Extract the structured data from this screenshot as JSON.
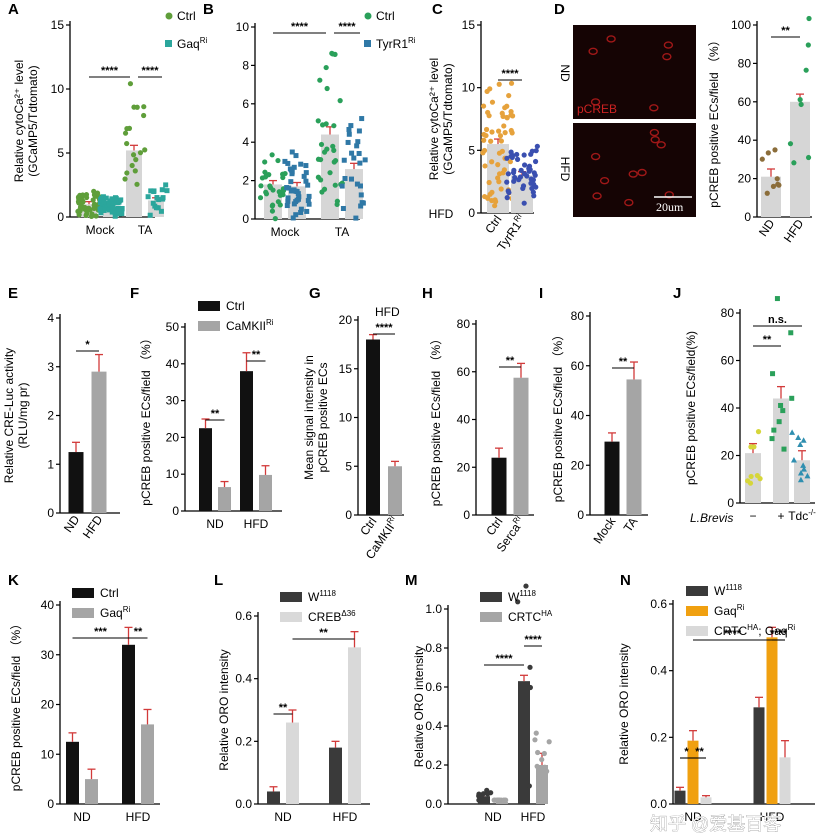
{
  "watermark": "知乎 @爱基百客",
  "chart_data": [
    {
      "id": "A",
      "type": "bar",
      "panel": "A",
      "title": "",
      "categories": [
        "Mock",
        "TA"
      ],
      "series": [
        {
          "name": "Ctrl",
          "legend": "Ctrl",
          "values": [
            1.0,
            5.2
          ],
          "errors": [
            0.2,
            0.4
          ],
          "color": "#5f9e3a",
          "marker": "circle",
          "fill": "#d6d6d6"
        },
        {
          "name": "GaqRi",
          "legend": "Gaq",
          "legend_sup": "Ri",
          "values": [
            0.9,
            1.3
          ],
          "errors": [
            0.15,
            0.2
          ],
          "color": "#2ba69c",
          "marker": "square",
          "fill": "#d6d6d6"
        }
      ],
      "ylabel": [
        "Relative cytoCa²⁺ level",
        "(GCaMP5/Tdtomato)"
      ],
      "ylim": [
        0,
        15
      ],
      "yticks": [
        "0",
        "5",
        "10",
        "15"
      ],
      "significance": [
        "****",
        "****"
      ]
    },
    {
      "id": "B",
      "type": "bar",
      "panel": "B",
      "title": "",
      "categories": [
        "Mock",
        "TA"
      ],
      "series": [
        {
          "name": "Ctrl",
          "legend": "Ctrl",
          "values": [
            1.8,
            4.4
          ],
          "errors": [
            0.2,
            0.4
          ],
          "color": "#2aa05a",
          "marker": "circle",
          "fill": "#d6d6d6"
        },
        {
          "name": "TyrR1Ri",
          "legend": "TyrR1",
          "legend_sup": "Ri",
          "values": [
            1.7,
            2.6
          ],
          "errors": [
            0.2,
            0.3
          ],
          "color": "#2f78a6",
          "marker": "square",
          "fill": "#d6d6d6"
        }
      ],
      "ylabel": [],
      "ylim": [
        0,
        10
      ],
      "yticks": [
        "0",
        "2",
        "4",
        "6",
        "8",
        "10"
      ],
      "significance": [
        "****",
        "****"
      ]
    },
    {
      "id": "C",
      "type": "bar",
      "panel": "C",
      "title": "",
      "row_label": "HFD",
      "categories": [
        "Ctrl",
        "TyrR1"
      ],
      "category_sups": [
        "",
        "Ri"
      ],
      "series": [
        {
          "name": "HFD",
          "values": [
            5.5,
            3.0
          ],
          "errors": [
            0.4,
            0.3
          ],
          "colors": [
            "#e6a23c",
            "#3a4fb0"
          ],
          "fill": "#d6d6d6"
        }
      ],
      "ylabel": [
        "Relative cytoCa²⁺ level",
        "(GCaMP5/Tdtomato)"
      ],
      "ylim": [
        0,
        15
      ],
      "yticks": [
        "0",
        "5",
        "10",
        "15"
      ],
      "significance": [
        "****"
      ]
    },
    {
      "id": "D",
      "type": "bar",
      "panel": "D",
      "title": "",
      "categories": [
        "ND",
        "HFD"
      ],
      "series": [
        {
          "name": "pCREB",
          "values": [
            21,
            60
          ],
          "errors": [
            4,
            4
          ],
          "colors": [
            "#8b6d3a",
            "#2aa05a"
          ],
          "fill": "#d6d6d6"
        }
      ],
      "ylabel": [
        "pCREB positive ECs/field （%）"
      ],
      "ylim": [
        0,
        100
      ],
      "yticks": [
        "0",
        "20",
        "40",
        "60",
        "80",
        "100"
      ],
      "significance": [
        "**"
      ],
      "image_labels": {
        "top": "ND",
        "bottom": "HFD",
        "stain": "pCREB",
        "scale": "20um"
      }
    },
    {
      "id": "E",
      "type": "bar",
      "panel": "E",
      "title": "",
      "categories": [
        "ND",
        "HFD"
      ],
      "series": [
        {
          "name": "CRE-Luc",
          "values": [
            1.25,
            2.9
          ],
          "errors": [
            0.2,
            0.35
          ],
          "colors": [
            "#111111",
            "#a5a5a5"
          ]
        }
      ],
      "ylabel": [
        "Relative CRE-Luc activity",
        "(RLU/mg pr)"
      ],
      "ylim": [
        0,
        4
      ],
      "yticks": [
        "0",
        "1",
        "2",
        "3",
        "4"
      ],
      "significance": [
        "*"
      ]
    },
    {
      "id": "F",
      "type": "bar",
      "panel": "F",
      "title": "",
      "categories": [
        "ND",
        "HFD"
      ],
      "series": [
        {
          "name": "Ctrl",
          "legend": "Ctrl",
          "values": [
            22.5,
            38
          ],
          "errors": [
            2.5,
            5
          ],
          "color": "#111111"
        },
        {
          "name": "CaMKIIRi",
          "legend": "CaMKII",
          "legend_sup": "Ri",
          "values": [
            6.5,
            9.8
          ],
          "errors": [
            1.5,
            2.5
          ],
          "color": "#a5a5a5"
        }
      ],
      "ylabel": [
        "pCREB positive ECs/field （%）"
      ],
      "ylim": [
        0,
        50
      ],
      "yticks": [
        "0",
        "10",
        "20",
        "30",
        "40",
        "50"
      ],
      "significance": [
        "**",
        "**"
      ]
    },
    {
      "id": "G",
      "type": "bar",
      "panel": "G",
      "title": "HFD",
      "categories": [
        "Ctrl",
        "CaMKII"
      ],
      "category_sups": [
        "",
        "Ri"
      ],
      "series": [
        {
          "name": "Mean signal",
          "values": [
            18,
            5
          ],
          "errors": [
            0.5,
            0.5
          ],
          "colors": [
            "#111111",
            "#a5a5a5"
          ]
        }
      ],
      "ylabel": [
        "Mean signal intensity in",
        "pCREB positive ECs"
      ],
      "ylim": [
        0,
        20
      ],
      "yticks": [
        "0",
        "5",
        "10",
        "15",
        "20"
      ],
      "significance": [
        "****"
      ]
    },
    {
      "id": "H",
      "type": "bar",
      "panel": "H",
      "title": "",
      "categories": [
        "Ctrl",
        "Serca"
      ],
      "category_sups": [
        "",
        "Ri"
      ],
      "series": [
        {
          "name": "pCREB",
          "values": [
            24,
            57.5
          ],
          "errors": [
            4,
            6
          ],
          "colors": [
            "#111111",
            "#a5a5a5"
          ]
        }
      ],
      "ylabel": [
        "pCREB positive ECs/field （%）"
      ],
      "ylim": [
        0,
        80
      ],
      "yticks": [
        "0",
        "20",
        "40",
        "60",
        "80"
      ],
      "significance": [
        "**"
      ]
    },
    {
      "id": "I",
      "type": "bar",
      "panel": "I",
      "title": "",
      "categories": [
        "Mock",
        "TA"
      ],
      "series": [
        {
          "name": "pCREB",
          "values": [
            29.5,
            54.5
          ],
          "errors": [
            3.5,
            7
          ],
          "colors": [
            "#111111",
            "#a5a5a5"
          ]
        }
      ],
      "ylabel": [
        "pCREB positive ECs/field （%）"
      ],
      "ylim": [
        0,
        80
      ],
      "yticks": [
        "0",
        "20",
        "40",
        "60",
        "80"
      ],
      "significance": [
        "**"
      ]
    },
    {
      "id": "J",
      "type": "bar",
      "panel": "J",
      "title": "",
      "categories": [
        "−",
        "+",
        "Tdc"
      ],
      "category_sups": [
        "",
        "",
        "-/-"
      ],
      "row_label": "L.Brevis",
      "series": [
        {
          "name": "pCREB",
          "values": [
            21,
            44,
            18
          ],
          "errors": [
            4,
            5,
            4
          ],
          "colors": [
            "#d6d63a",
            "#2aa05a",
            "#2f8fb0"
          ],
          "fill": "#d6d6d6"
        }
      ],
      "ylabel": [
        "pCREB positive ECs/field(%)"
      ],
      "ylim": [
        0,
        80
      ],
      "yticks": [
        "0",
        "20",
        "40",
        "60",
        "80"
      ],
      "significance": [
        "**",
        "n.s."
      ]
    },
    {
      "id": "K",
      "type": "bar",
      "panel": "K",
      "title": "",
      "categories": [
        "ND",
        "HFD"
      ],
      "series": [
        {
          "name": "Ctrl",
          "legend": "Ctrl",
          "values": [
            12.5,
            32
          ],
          "errors": [
            1.8,
            3.5
          ],
          "color": "#111111"
        },
        {
          "name": "GaqRi",
          "legend": "Gaq",
          "legend_sup": "Ri",
          "values": [
            5,
            16
          ],
          "errors": [
            2,
            3
          ],
          "color": "#a5a5a5"
        }
      ],
      "ylabel": [
        "pCREB positive ECs/field （%）"
      ],
      "ylim": [
        0,
        40
      ],
      "yticks": [
        "0",
        "10",
        "20",
        "30",
        "40"
      ],
      "significance": [
        "***",
        "**"
      ]
    },
    {
      "id": "L",
      "type": "bar",
      "panel": "L",
      "title": "",
      "categories": [
        "ND",
        "HFD"
      ],
      "series": [
        {
          "name": "W1118",
          "legend": "W",
          "legend_sup": "1118",
          "values": [
            0.04,
            0.18
          ],
          "errors": [
            0.015,
            0.02
          ],
          "color": "#3a3a3a"
        },
        {
          "name": "CREBΔ36",
          "legend": "CREB",
          "legend_sup": "Δ36",
          "values": [
            0.26,
            0.5
          ],
          "errors": [
            0.04,
            0.05
          ],
          "color": "#d9d9d9"
        }
      ],
      "ylabel": [
        "Relative ORO intensity"
      ],
      "ylim": [
        0,
        0.6
      ],
      "yticks": [
        "0.0",
        "0.2",
        "0.4",
        "0.6"
      ],
      "significance": [
        "**",
        "**"
      ]
    },
    {
      "id": "M",
      "type": "bar",
      "panel": "M",
      "title": "",
      "categories": [
        "ND",
        "HFD"
      ],
      "series": [
        {
          "name": "W1118",
          "legend": "W",
          "legend_sup": "1118",
          "values": [
            0.04,
            0.63
          ],
          "errors": [
            0.015,
            0.03
          ],
          "color": "#3a3a3a"
        },
        {
          "name": "CRTCHA",
          "legend": "CRTC",
          "legend_sup": "HA",
          "values": [
            0.01,
            0.2
          ],
          "errors": [
            0.005,
            0.06
          ],
          "color": "#a5a5a5"
        }
      ],
      "ylabel": [
        "Relative ORO intensity"
      ],
      "ylim": [
        0,
        1.0
      ],
      "yticks": [
        "0.0",
        "0.2",
        "0.4",
        "0.6",
        "0.8",
        "1.0"
      ],
      "significance": [
        "****",
        "****"
      ]
    },
    {
      "id": "N",
      "type": "bar",
      "panel": "N",
      "title": "",
      "categories": [
        "ND",
        "HFD"
      ],
      "series": [
        {
          "name": "W1118",
          "legend": "W",
          "legend_sup": "1118",
          "values": [
            0.04,
            0.29
          ],
          "errors": [
            0.01,
            0.03
          ],
          "color": "#3a3a3a"
        },
        {
          "name": "GaqRi",
          "legend": "Gaq",
          "legend_sup": "Ri",
          "values": [
            0.19,
            0.5
          ],
          "errors": [
            0.03,
            0.03
          ],
          "color": "#f0a010"
        },
        {
          "name": "CRTCHA; GaqRi",
          "legend": "CRTC",
          "legend_sup": "HA",
          "legend_tail": "; Gaq",
          "legend_sup2": "Ri",
          "values": [
            0.02,
            0.14
          ],
          "errors": [
            0.005,
            0.05
          ],
          "color": "#d9d9d9"
        }
      ],
      "ylabel": [
        "Relative ORO intensity"
      ],
      "ylim": [
        0,
        0.6
      ],
      "yticks": [
        "0.0",
        "0.2",
        "0.4",
        "0.6"
      ],
      "significance": [
        "*",
        "**",
        "****",
        "****"
      ]
    }
  ]
}
